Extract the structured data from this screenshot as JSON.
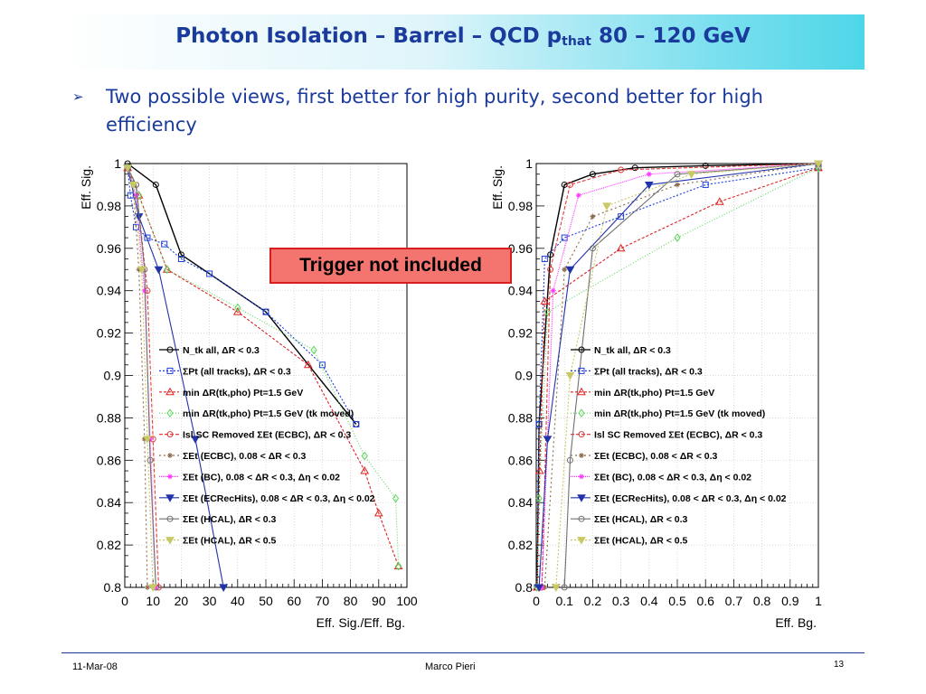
{
  "slide": {
    "title_main": "Photon Isolation – Barrel – QCD p",
    "title_sub": "that",
    "title_range": " 80 – 120 GeV",
    "bullet": "Two possible views, first better for high purity, second better for high efficiency",
    "callout": "Trigger not included",
    "footer": {
      "date": "11-Mar-08",
      "author": "Marco Pieri",
      "page": "13"
    }
  },
  "chart_data": [
    {
      "type": "line",
      "title": "",
      "xlabel": "Eff. Sig./Eff. Bg.",
      "ylabel": "Eff. Sig.",
      "xlim": [
        0,
        100
      ],
      "ylim": [
        0.8,
        1.0
      ],
      "xticks": [
        "0",
        "10",
        "20",
        "30",
        "40",
        "50",
        "60",
        "70",
        "80",
        "90",
        "100"
      ],
      "yticks": [
        "0.8",
        "0.82",
        "0.84",
        "0.86",
        "0.88",
        "0.9",
        "0.92",
        "0.94",
        "0.96",
        "0.98",
        "1"
      ],
      "legend_position": "center",
      "series": [
        {
          "name": "N_tk all, ΔR < 0.3",
          "color": "#000000",
          "marker": "circle",
          "x": [
            1,
            11,
            20,
            50,
            82
          ],
          "y": [
            1.0,
            0.99,
            0.957,
            0.93,
            0.877
          ]
        },
        {
          "name": "ΣPt (all tracks), ΔR < 0.3",
          "color": "#1f3fd8",
          "marker": "square",
          "x": [
            1,
            2,
            4,
            8,
            14,
            20,
            30,
            50,
            70,
            82
          ],
          "y": [
            0.998,
            0.985,
            0.97,
            0.965,
            0.962,
            0.955,
            0.948,
            0.93,
            0.905,
            0.877
          ]
        },
        {
          "name": "min ΔR(tk,pho) Pt=1.5 GeV",
          "color": "#e02020",
          "marker": "triangle",
          "x": [
            1,
            5,
            15,
            40,
            65,
            85,
            90,
            97
          ],
          "y": [
            0.998,
            0.985,
            0.95,
            0.93,
            0.905,
            0.855,
            0.835,
            0.81
          ]
        },
        {
          "name": "min ΔR(tk,pho) Pt=1.5 GeV (tk moved)",
          "color": "#5cd65c",
          "marker": "diamond",
          "x": [
            1,
            5,
            15,
            40,
            67,
            85,
            96,
            97
          ],
          "y": [
            0.998,
            0.985,
            0.95,
            0.932,
            0.912,
            0.862,
            0.842,
            0.81
          ]
        },
        {
          "name": "Isl SC Removed ΣEt (ECBC), ΔR < 0.3",
          "color": "#e04040",
          "marker": "circle",
          "x": [
            1,
            4,
            8,
            10,
            12
          ],
          "y": [
            0.998,
            0.99,
            0.94,
            0.87,
            0.8
          ]
        },
        {
          "name": "ΣEt (ECBC), 0.08 < ΔR < 0.3",
          "color": "#8b6a4a",
          "marker": "star",
          "x": [
            1,
            3,
            5,
            7,
            8
          ],
          "y": [
            0.998,
            0.99,
            0.95,
            0.87,
            0.8
          ]
        },
        {
          "name": "ΣEt (BC), 0.08 < ΔR < 0.3, Δη < 0.02",
          "color": "#ff33ff",
          "marker": "star",
          "x": [
            1,
            4,
            7,
            9,
            11
          ],
          "y": [
            0.998,
            0.985,
            0.94,
            0.87,
            0.8
          ]
        },
        {
          "name": "ΣEt (ECRecHits), 0.08 < ΔR < 0.3, Δη < 0.02",
          "color": "#2233aa",
          "marker": "triangle-down",
          "x": [
            1,
            5,
            12,
            25,
            35
          ],
          "y": [
            0.998,
            0.975,
            0.95,
            0.87,
            0.8
          ]
        },
        {
          "name": "ΣEt (HCAL), ΔR < 0.3",
          "color": "#707070",
          "marker": "circle",
          "x": [
            1,
            4,
            7,
            9,
            11
          ],
          "y": [
            0.998,
            0.99,
            0.95,
            0.86,
            0.8
          ]
        },
        {
          "name": "ΣEt (HCAL), ΔR < 0.5",
          "color": "#c8c864",
          "marker": "triangle-down",
          "x": [
            1,
            3,
            6,
            8,
            10
          ],
          "y": [
            0.998,
            0.99,
            0.95,
            0.87,
            0.8
          ]
        }
      ]
    },
    {
      "type": "line",
      "title": "",
      "xlabel": "Eff. Bg.",
      "ylabel": "Eff. Sig.",
      "xlim": [
        0,
        1
      ],
      "ylim": [
        0.8,
        1.0
      ],
      "xticks": [
        "0",
        "0.1",
        "0.2",
        "0.3",
        "0.4",
        "0.5",
        "0.6",
        "0.7",
        "0.8",
        "0.9",
        "1"
      ],
      "yticks": [
        "0.8",
        "0.82",
        "0.84",
        "0.86",
        "0.88",
        "0.9",
        "0.92",
        "0.94",
        "0.96",
        "0.98",
        "1"
      ],
      "legend_position": "center",
      "series": [
        {
          "name": "N_tk all, ΔR < 0.3",
          "color": "#000000",
          "marker": "circle",
          "x": [
            0.003,
            0.01,
            0.05,
            0.1,
            0.2,
            0.35,
            0.6,
            1.0
          ],
          "y": [
            0.8,
            0.877,
            0.957,
            0.99,
            0.995,
            0.998,
            0.999,
            1.0
          ]
        },
        {
          "name": "ΣPt (all tracks), ΔR < 0.3",
          "color": "#1f3fd8",
          "marker": "square",
          "x": [
            0.003,
            0.01,
            0.03,
            0.1,
            0.3,
            0.6,
            1.0
          ],
          "y": [
            0.8,
            0.877,
            0.955,
            0.965,
            0.975,
            0.99,
            0.998
          ]
        },
        {
          "name": "min ΔR(tk,pho) Pt=1.5 GeV",
          "color": "#e02020",
          "marker": "triangle",
          "x": [
            0.003,
            0.012,
            0.03,
            0.3,
            0.65,
            1.0
          ],
          "y": [
            0.8,
            0.855,
            0.935,
            0.96,
            0.982,
            0.998
          ]
        },
        {
          "name": "min ΔR(tk,pho) Pt=1.5 GeV (tk moved)",
          "color": "#5cd65c",
          "marker": "diamond",
          "x": [
            0.003,
            0.01,
            0.04,
            0.5,
            1.0
          ],
          "y": [
            0.8,
            0.842,
            0.93,
            0.965,
            0.998
          ]
        },
        {
          "name": "Isl SC Removed ΣEt (ECBC), ΔR < 0.3",
          "color": "#e04040",
          "marker": "circle",
          "x": [
            0.02,
            0.05,
            0.12,
            0.3,
            1.0
          ],
          "y": [
            0.8,
            0.95,
            0.99,
            0.997,
            1.0
          ]
        },
        {
          "name": "ΣEt (ECBC), 0.08 < ΔR < 0.3",
          "color": "#8b6a4a",
          "marker": "star",
          "x": [
            0.03,
            0.1,
            0.2,
            0.5,
            1.0
          ],
          "y": [
            0.8,
            0.95,
            0.975,
            0.99,
            1.0
          ]
        },
        {
          "name": "ΣEt (BC), 0.08 < ΔR < 0.3, Δη < 0.02",
          "color": "#ff33ff",
          "marker": "star",
          "x": [
            0.02,
            0.06,
            0.15,
            0.4,
            1.0
          ],
          "y": [
            0.8,
            0.94,
            0.985,
            0.995,
            1.0
          ]
        },
        {
          "name": "ΣEt (ECRecHits), 0.08 < ΔR < 0.3, Δη < 0.02",
          "color": "#2233aa",
          "marker": "triangle-down",
          "x": [
            0.01,
            0.04,
            0.12,
            0.4,
            1.0
          ],
          "y": [
            0.8,
            0.87,
            0.95,
            0.99,
            1.0
          ]
        },
        {
          "name": "ΣEt (HCAL), ΔR < 0.3",
          "color": "#707070",
          "marker": "circle",
          "x": [
            0.1,
            0.12,
            0.2,
            0.5,
            1.0
          ],
          "y": [
            0.8,
            0.86,
            0.96,
            0.995,
            1.0
          ]
        },
        {
          "name": "ΣEt (HCAL), ΔR < 0.5",
          "color": "#c8c864",
          "marker": "triangle-down",
          "x": [
            0.07,
            0.12,
            0.25,
            0.55,
            1.0
          ],
          "y": [
            0.8,
            0.9,
            0.98,
            0.995,
            1.0
          ]
        }
      ]
    }
  ]
}
